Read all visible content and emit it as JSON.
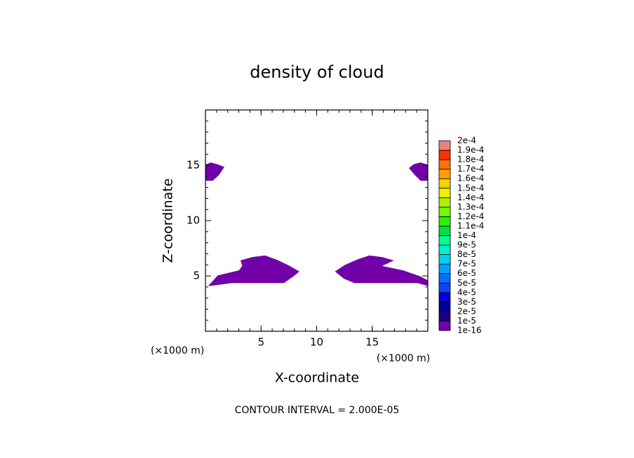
{
  "chart_data": {
    "type": "contour",
    "title": "density of cloud",
    "x_label": "X-coordinate",
    "y_label": "Z-coordinate",
    "x_unit_label": "(×1000 m)",
    "y_unit_label": "(×1000 m)",
    "annotation": "CONTOUR INTERVAL = 2.000E-05",
    "xlim": [
      0,
      20
    ],
    "ylim": [
      0,
      20
    ],
    "xticks": [
      5,
      10,
      15
    ],
    "yticks": [
      5,
      10,
      15
    ],
    "minor_tick_step": 1,
    "levels": [
      {
        "value": 1e-16,
        "label": "1e-16"
      },
      {
        "value": 1e-05,
        "label": "1e-5"
      },
      {
        "value": 2e-05,
        "label": "2e-5"
      },
      {
        "value": 3e-05,
        "label": "3e-5"
      },
      {
        "value": 4e-05,
        "label": "4e-5"
      },
      {
        "value": 5e-05,
        "label": "5e-5"
      },
      {
        "value": 6e-05,
        "label": "6e-5"
      },
      {
        "value": 7e-05,
        "label": "7e-5"
      },
      {
        "value": 8e-05,
        "label": "8e-5"
      },
      {
        "value": 9e-05,
        "label": "9e-5"
      },
      {
        "value": 0.0001,
        "label": "1e-4"
      },
      {
        "value": 0.00011,
        "label": "1.1e-4"
      },
      {
        "value": 0.00012,
        "label": "1.2e-4"
      },
      {
        "value": 0.00013,
        "label": "1.3e-4"
      },
      {
        "value": 0.00014,
        "label": "1.4e-4"
      },
      {
        "value": 0.00015,
        "label": "1.5e-4"
      },
      {
        "value": 0.00016,
        "label": "1.6e-4"
      },
      {
        "value": 0.00017,
        "label": "1.7e-4"
      },
      {
        "value": 0.00018,
        "label": "1.8e-4"
      },
      {
        "value": 0.00019,
        "label": "1.9e-4"
      },
      {
        "value": 0.0002,
        "label": "2e-4"
      }
    ],
    "colors": [
      "#7200a8",
      "#1a0080",
      "#0000a8",
      "#0000e0",
      "#1040ff",
      "#0070ff",
      "#00a0ff",
      "#00d0f0",
      "#00f0d0",
      "#00ff90",
      "#00e040",
      "#30f000",
      "#70ff00",
      "#b0f000",
      "#f0f000",
      "#ffd000",
      "#ffa000",
      "#ff7000",
      "#ff3000",
      "#f08080"
    ],
    "regions": [
      {
        "level": 1e-16,
        "points": [
          [
            0,
            15.05
          ],
          [
            0.45,
            15.25
          ],
          [
            1.05,
            15.1
          ],
          [
            1.7,
            14.85
          ],
          [
            1.2,
            14.1
          ],
          [
            0.65,
            13.6
          ],
          [
            0,
            13.6
          ]
        ]
      },
      {
        "level": 1e-16,
        "points": [
          [
            20,
            15.05
          ],
          [
            19.35,
            15.25
          ],
          [
            18.75,
            15.1
          ],
          [
            18.3,
            14.75
          ],
          [
            18.85,
            14.1
          ],
          [
            19.35,
            13.6
          ],
          [
            20,
            13.6
          ]
        ]
      },
      {
        "level": 1e-16,
        "points": [
          [
            0.25,
            4.1
          ],
          [
            1.1,
            5.05
          ],
          [
            3.0,
            5.5
          ],
          [
            3.3,
            5.9
          ],
          [
            3.15,
            6.4
          ],
          [
            4.2,
            6.7
          ],
          [
            5.35,
            6.85
          ],
          [
            6.45,
            6.45
          ],
          [
            7.4,
            6.0
          ],
          [
            8.45,
            5.4
          ],
          [
            7.9,
            4.95
          ],
          [
            7.05,
            4.35
          ],
          [
            5.0,
            4.35
          ],
          [
            2.35,
            4.35
          ],
          [
            0.45,
            4.1
          ]
        ]
      },
      {
        "level": 1e-16,
        "points": [
          [
            11.65,
            5.4
          ],
          [
            12.55,
            6.0
          ],
          [
            13.7,
            6.5
          ],
          [
            14.75,
            6.85
          ],
          [
            15.9,
            6.7
          ],
          [
            16.95,
            6.4
          ],
          [
            15.9,
            5.9
          ],
          [
            17.8,
            5.5
          ],
          [
            19.35,
            4.95
          ],
          [
            20,
            4.6
          ],
          [
            20,
            4.1
          ],
          [
            19.05,
            4.35
          ],
          [
            17.5,
            4.35
          ],
          [
            15.6,
            4.35
          ],
          [
            13.4,
            4.35
          ],
          [
            12.45,
            4.75
          ]
        ]
      }
    ]
  }
}
